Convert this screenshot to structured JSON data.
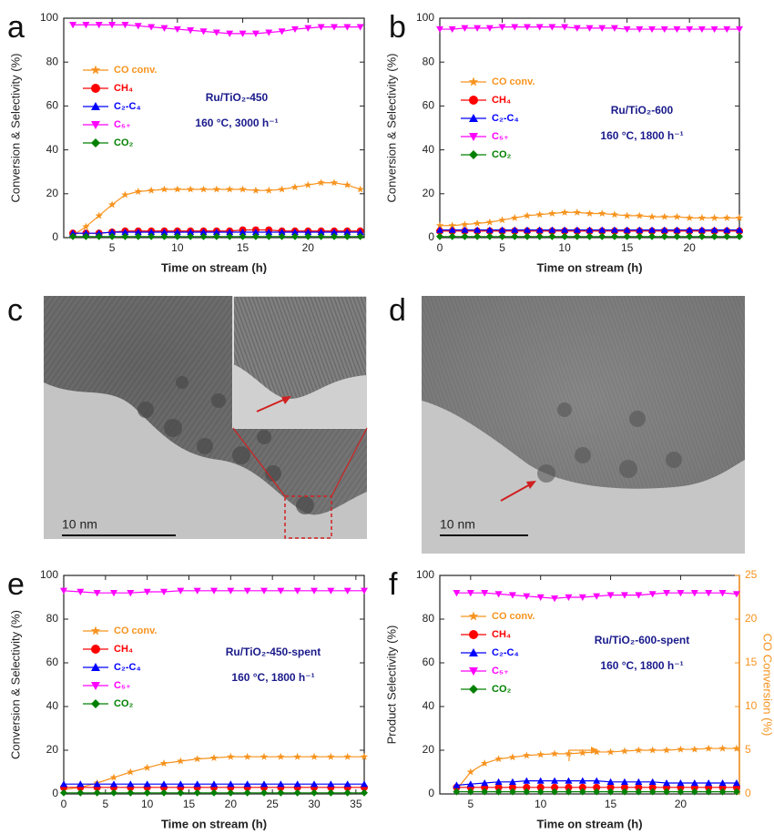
{
  "chart_data": [
    {
      "type": "line",
      "panel": "a",
      "x_label": "Time on stream (h)",
      "y_label": "Conversion & Selectivity (%)",
      "xlim": [
        1.3,
        24.3
      ],
      "xticks": [
        5,
        10,
        15,
        20
      ],
      "ylim": [
        0,
        100
      ],
      "yticks": [
        0,
        20,
        40,
        60,
        80,
        100
      ],
      "annotation": [
        "Ru/TiO₂-450",
        "160 °C, 3000 h⁻¹"
      ],
      "x": [
        2,
        3,
        4,
        5,
        6,
        7,
        8,
        9,
        10,
        11,
        12,
        13,
        14,
        15,
        16,
        17,
        18,
        19,
        20,
        21,
        22,
        23,
        24
      ],
      "series": [
        {
          "name": "CO conv.",
          "color": "#f7931e",
          "marker": "star",
          "values": [
            1,
            5,
            10,
            15,
            19.5,
            21,
            21.5,
            22,
            22,
            22,
            22,
            22,
            22,
            22,
            21.5,
            21.5,
            22,
            23,
            24,
            25,
            25,
            24,
            22
          ]
        },
        {
          "name": "CH₄",
          "color": "#ff0000",
          "marker": "circle",
          "values": [
            2,
            2,
            2,
            2.5,
            3,
            3,
            3,
            3,
            3,
            3,
            3,
            3,
            3,
            3.5,
            3.5,
            3.5,
            3,
            3,
            3,
            3,
            3,
            3,
            3
          ]
        },
        {
          "name": "C₂-C₄",
          "color": "#0000ff",
          "marker": "triangle-up",
          "values": [
            2,
            2,
            2,
            2.5,
            2.5,
            2.5,
            2.5,
            2.5,
            2.5,
            2.5,
            2.5,
            2.5,
            2.5,
            2.5,
            2.5,
            2.5,
            2.5,
            2.5,
            2.5,
            2.5,
            2.5,
            2.5,
            2.5
          ]
        },
        {
          "name": "C₅₊",
          "color": "#ff00ff",
          "marker": "triangle-down",
          "values": [
            97,
            97,
            97,
            97,
            97,
            96.5,
            96,
            95.5,
            95,
            94.5,
            94,
            93.5,
            93,
            93,
            93,
            93.5,
            94,
            95,
            95.5,
            96,
            96,
            96,
            96
          ]
        },
        {
          "name": "CO₂",
          "color": "#008000",
          "marker": "diamond",
          "values": [
            0.5,
            0.5,
            0.5,
            0.5,
            0.5,
            0.5,
            0.5,
            0.5,
            0.5,
            0.5,
            0.5,
            0.5,
            0.5,
            0.5,
            0.5,
            0.5,
            0.5,
            0.5,
            0.5,
            0.5,
            0.5,
            0.5,
            0.5
          ]
        }
      ]
    },
    {
      "type": "line",
      "panel": "b",
      "x_label": "Time on stream (h)",
      "y_label": "Conversion & Selectivity (%)",
      "xlim": [
        0,
        24
      ],
      "xticks": [
        0,
        5,
        10,
        15,
        20
      ],
      "ylim": [
        0,
        100
      ],
      "yticks": [
        0,
        20,
        40,
        60,
        80,
        100
      ],
      "annotation": [
        "Ru/TiO₂-600",
        "160 °C, 1800 h⁻¹"
      ],
      "x": [
        0,
        1,
        2,
        3,
        4,
        5,
        6,
        7,
        8,
        9,
        10,
        11,
        12,
        13,
        14,
        15,
        16,
        17,
        18,
        19,
        20,
        21,
        22,
        23,
        24
      ],
      "series": [
        {
          "name": "CO conv.",
          "color": "#f7931e",
          "marker": "star",
          "values": [
            5.5,
            5.5,
            6,
            6.5,
            7,
            8,
            9,
            10,
            10.5,
            11,
            11.5,
            11.5,
            11,
            11,
            10.5,
            10,
            10,
            9.5,
            9.5,
            9.5,
            9,
            9,
            9,
            9,
            9
          ]
        },
        {
          "name": "CH₄",
          "color": "#ff0000",
          "marker": "circle",
          "values": [
            3,
            3,
            3,
            3,
            3,
            3,
            3,
            3,
            3,
            3,
            3,
            3,
            3,
            3,
            3,
            3,
            3,
            3,
            3,
            3,
            3,
            3,
            3,
            3,
            3
          ]
        },
        {
          "name": "C₂-C₄",
          "color": "#0000ff",
          "marker": "triangle-up",
          "values": [
            3.5,
            3.5,
            3.5,
            3.5,
            3.5,
            3.5,
            3.5,
            3.5,
            3.5,
            3.5,
            3.5,
            3.5,
            3.5,
            3.5,
            3.5,
            3.5,
            3.5,
            3.5,
            3.5,
            3.5,
            3.5,
            3.5,
            3.5,
            3.5,
            3.5
          ]
        },
        {
          "name": "C₅₊",
          "color": "#ff00ff",
          "marker": "triangle-down",
          "values": [
            95,
            95,
            95.5,
            95.5,
            95.5,
            96,
            96,
            96,
            96,
            96,
            96,
            95.5,
            95.5,
            95.5,
            95.5,
            95,
            95,
            95,
            95,
            95,
            95,
            95,
            95,
            95,
            95
          ]
        },
        {
          "name": "CO₂",
          "color": "#008000",
          "marker": "diamond",
          "values": [
            0.5,
            0.5,
            0.5,
            0.5,
            0.5,
            0.5,
            0.5,
            0.5,
            0.5,
            0.5,
            0.5,
            0.5,
            0.5,
            0.5,
            0.5,
            0.5,
            0.5,
            0.5,
            0.5,
            0.5,
            0.5,
            0.5,
            0.5,
            0.5,
            0.5
          ]
        }
      ]
    },
    {
      "type": "line",
      "panel": "e",
      "x_label": "Time on stream (h)",
      "y_label": "Conversion & Selectivity (%)",
      "xlim": [
        0,
        36
      ],
      "xticks": [
        0,
        5,
        10,
        15,
        20,
        25,
        30,
        35
      ],
      "ylim": [
        0,
        100
      ],
      "yticks": [
        0,
        20,
        40,
        60,
        80,
        100
      ],
      "annotation": [
        "Ru/TiO₂-450-spent",
        "160 °C, 1800 h⁻¹"
      ],
      "x": [
        0,
        2,
        4,
        6,
        8,
        10,
        12,
        14,
        16,
        18,
        20,
        22,
        24,
        26,
        28,
        30,
        32,
        34,
        36
      ],
      "series": [
        {
          "name": "CO conv.",
          "color": "#f7931e",
          "marker": "star",
          "values": [
            2,
            3,
            5,
            7.5,
            10,
            12,
            14,
            15,
            16,
            16.5,
            17,
            17,
            17,
            17,
            17,
            17,
            17,
            17,
            17
          ]
        },
        {
          "name": "CH₄",
          "color": "#ff0000",
          "marker": "circle",
          "values": [
            3,
            3,
            3,
            3,
            3,
            3,
            3,
            3,
            3,
            3,
            3,
            3,
            3,
            3,
            3,
            3,
            3,
            3,
            3
          ]
        },
        {
          "name": "C₂-C₄",
          "color": "#0000ff",
          "marker": "triangle-up",
          "values": [
            4.5,
            4.5,
            4.5,
            4.5,
            4.5,
            4.5,
            4.5,
            4.5,
            4.5,
            4.5,
            4.5,
            4.5,
            4.5,
            4.5,
            4.5,
            4.5,
            4.5,
            4.5,
            4.5
          ]
        },
        {
          "name": "C₅₊",
          "color": "#ff00ff",
          "marker": "triangle-down",
          "values": [
            93,
            92.5,
            92,
            92,
            92,
            92.5,
            92.5,
            93,
            93,
            93,
            93,
            93,
            93,
            93,
            93,
            93,
            93,
            93,
            93
          ]
        },
        {
          "name": "CO₂",
          "color": "#008000",
          "marker": "diamond",
          "values": [
            0.5,
            0.5,
            0.5,
            0.5,
            0.5,
            0.5,
            0.5,
            0.5,
            0.5,
            0.5,
            0.5,
            0.5,
            0.5,
            0.5,
            0.5,
            0.5,
            0.5,
            0.5,
            0.5
          ]
        }
      ]
    },
    {
      "type": "line",
      "panel": "f",
      "x_label": "Time on stream (h)",
      "y_label": "Product Selectivity (%)",
      "y2_label": "CO Conversion (%)",
      "xlim": [
        2.8,
        24.2
      ],
      "xticks": [
        5,
        10,
        15,
        20
      ],
      "ylim": [
        0,
        100
      ],
      "yticks": [
        0,
        20,
        40,
        60,
        80,
        100
      ],
      "y2lim": [
        0,
        25
      ],
      "y2ticks": [
        0,
        5,
        10,
        15,
        20,
        25
      ],
      "y2color": "#f7931e",
      "annotation": [
        "Ru/TiO₂-600-spent",
        "160 °C, 1800 h⁻¹"
      ],
      "x": [
        4,
        5,
        6,
        7,
        8,
        9,
        10,
        11,
        12,
        13,
        14,
        15,
        16,
        17,
        18,
        19,
        20,
        21,
        22,
        23,
        24
      ],
      "series": [
        {
          "name": "CO conv.",
          "color": "#f7931e",
          "marker": "star",
          "axis": "y2",
          "values": [
            0.5,
            2.5,
            3.5,
            4,
            4.2,
            4.4,
            4.5,
            4.6,
            4.6,
            4.7,
            4.8,
            4.8,
            4.9,
            5,
            5,
            5,
            5.1,
            5.1,
            5.2,
            5.2,
            5.2
          ]
        },
        {
          "name": "CH₄",
          "color": "#ff0000",
          "marker": "circle",
          "values": [
            3,
            3,
            3,
            3,
            3,
            3,
            3,
            3,
            3,
            3,
            3,
            3,
            3,
            3,
            3,
            3,
            3,
            3,
            3,
            3,
            3
          ]
        },
        {
          "name": "C₂-C₄",
          "color": "#0000ff",
          "marker": "triangle-up",
          "values": [
            4,
            4.5,
            5,
            5.5,
            5.5,
            6,
            6,
            6,
            6,
            6,
            6,
            5.5,
            5.5,
            5.5,
            5.5,
            5,
            5,
            5,
            5,
            5,
            5
          ]
        },
        {
          "name": "C₅₊",
          "color": "#ff00ff",
          "marker": "triangle-down",
          "values": [
            92,
            92,
            92,
            91.5,
            91,
            90.5,
            90,
            89.5,
            90,
            90,
            90.5,
            91,
            91,
            91,
            91.5,
            92,
            92,
            92,
            92,
            92,
            91.5
          ]
        },
        {
          "name": "CO₂",
          "color": "#008000",
          "marker": "diamond",
          "values": [
            1,
            1,
            1,
            1,
            1,
            1,
            1,
            1,
            1,
            1,
            1,
            1,
            1,
            1,
            1,
            1,
            1,
            1,
            1,
            1,
            1
          ]
        }
      ]
    }
  ],
  "images": [
    {
      "panel": "c",
      "scale_bar": "10 nm"
    },
    {
      "panel": "d",
      "scale_bar": "10 nm"
    }
  ]
}
